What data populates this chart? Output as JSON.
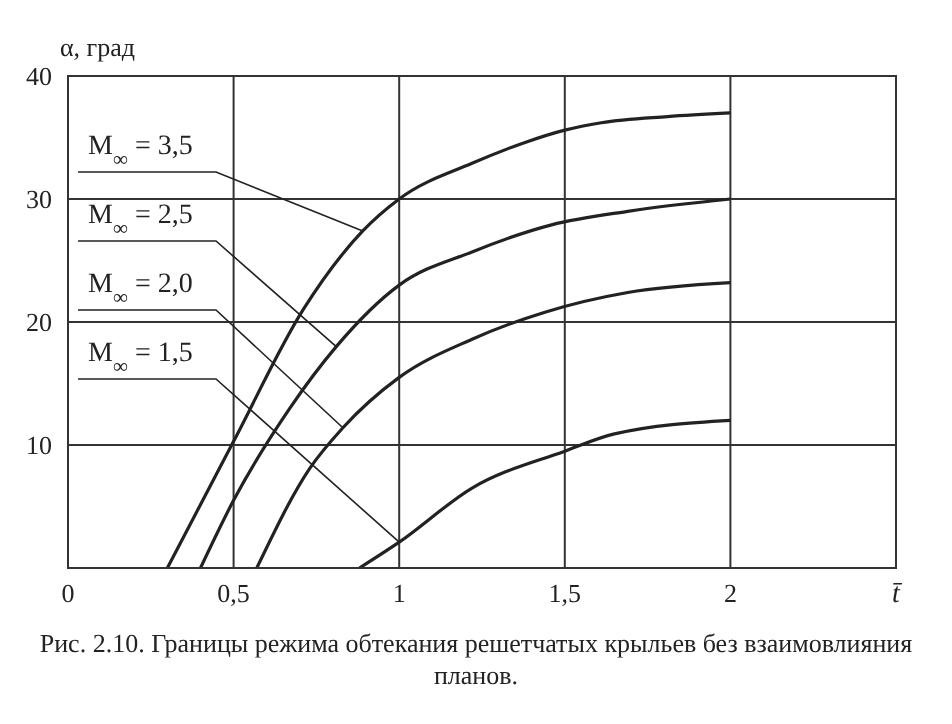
{
  "chart_data": {
    "type": "line",
    "xlabel": "t̄",
    "ylabel": "α, град",
    "annotations": [
      "Рис. 2.10. Границы режима обтекания решетчатых крыльев без взаимовлияния планов."
    ],
    "xlim": [
      0,
      2.5
    ],
    "xticks": [
      0,
      {
        "value": 0.5,
        "label": "0,5"
      },
      1,
      {
        "value": 1.5,
        "label": "1,5"
      },
      2
    ],
    "ylim": [
      0,
      40
    ],
    "yticks": [
      {
        "value": 0,
        "label": null
      },
      10,
      20,
      30,
      40
    ],
    "grid": true,
    "line_style": "solid",
    "series": [
      {
        "name": "M$_{∞}$ = 3,5",
        "color": "#222222",
        "x": [
          0.3,
          0.5,
          0.71,
          0.89,
          1.0,
          1.22,
          1.38,
          1.5,
          1.61,
          1.81,
          2.0
        ],
        "values": [
          0,
          10.3,
          21,
          27.4,
          30,
          32.9,
          34.6,
          35.6,
          36.2,
          36.7,
          37
        ]
      },
      {
        "name": "M$_{∞}$ = 2,5",
        "color": "#222222",
        "x": [
          0.4,
          0.5,
          0.67,
          0.81,
          1.0,
          1.22,
          1.46,
          1.69,
          2.0
        ],
        "values": [
          0,
          5.5,
          13,
          18,
          23,
          25.7,
          27.9,
          29,
          30
        ]
      },
      {
        "name": "M$_{∞}$ = 2,0",
        "color": "#222222",
        "x": [
          0.57,
          0.73,
          0.83,
          1.0,
          1.22,
          1.44,
          1.69,
          2.0
        ],
        "values": [
          0,
          8.1,
          11.4,
          15.5,
          18.6,
          20.8,
          22.4,
          23.2
        ]
      },
      {
        "name": "M$_{∞}$ = 1,5",
        "color": "#222222",
        "x": [
          0.88,
          1.0,
          1.22,
          1.5,
          1.65,
          2.0
        ],
        "values": [
          0,
          2.1,
          6.5,
          9.5,
          10.9,
          12
        ]
      }
    ]
  }
}
